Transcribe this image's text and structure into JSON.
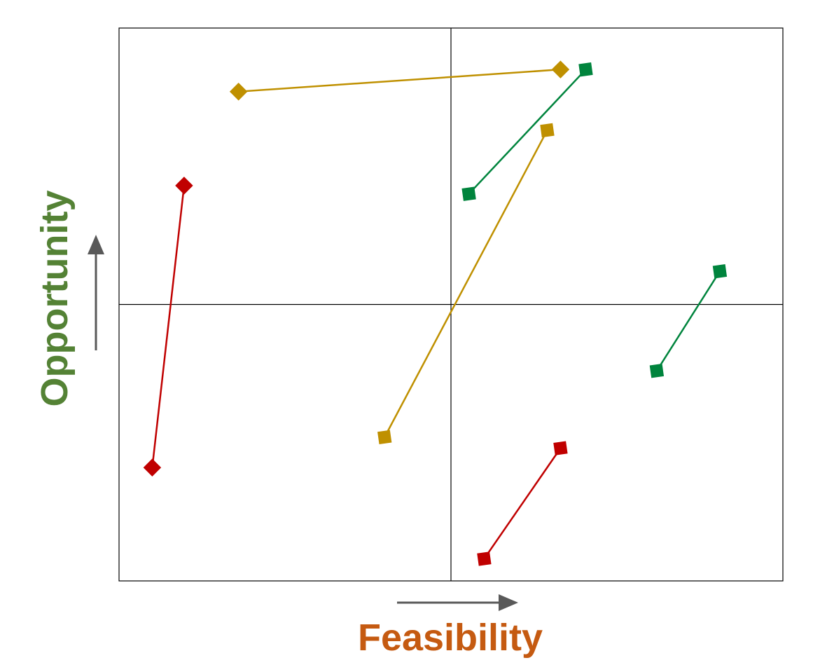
{
  "chart_data": {
    "type": "scatter",
    "title": "",
    "xlabel": "Feasibility",
    "ylabel": "Opportunity",
    "xlim": [
      0,
      100
    ],
    "ylim": [
      0,
      100
    ],
    "quadrant_divider": {
      "x": 50,
      "y": 50
    },
    "grid": false,
    "legend": "none",
    "colors": {
      "xlabel": "#C55A11",
      "ylabel": "#548235",
      "arrow": "#595959",
      "frame": "#000000"
    },
    "series": [
      {
        "color": "#C00000",
        "marker": "diamond",
        "points": [
          [
            5,
            20.5
          ],
          [
            9.8,
            71.5
          ]
        ]
      },
      {
        "color": "#C00000",
        "marker": "square",
        "points": [
          [
            55,
            4
          ],
          [
            66.5,
            24
          ]
        ]
      },
      {
        "color": "#BF9000",
        "marker": "diamond",
        "points": [
          [
            18,
            88.5
          ],
          [
            66.5,
            92.5
          ]
        ]
      },
      {
        "color": "#BF9000",
        "marker": "square",
        "points": [
          [
            40,
            26
          ],
          [
            64.5,
            81.5
          ]
        ]
      },
      {
        "color": "#00843D",
        "marker": "square",
        "points": [
          [
            52.7,
            70
          ],
          [
            70.3,
            92.5
          ]
        ]
      },
      {
        "color": "#00843D",
        "marker": "square",
        "points": [
          [
            81,
            38
          ],
          [
            90.5,
            56
          ]
        ]
      }
    ]
  }
}
